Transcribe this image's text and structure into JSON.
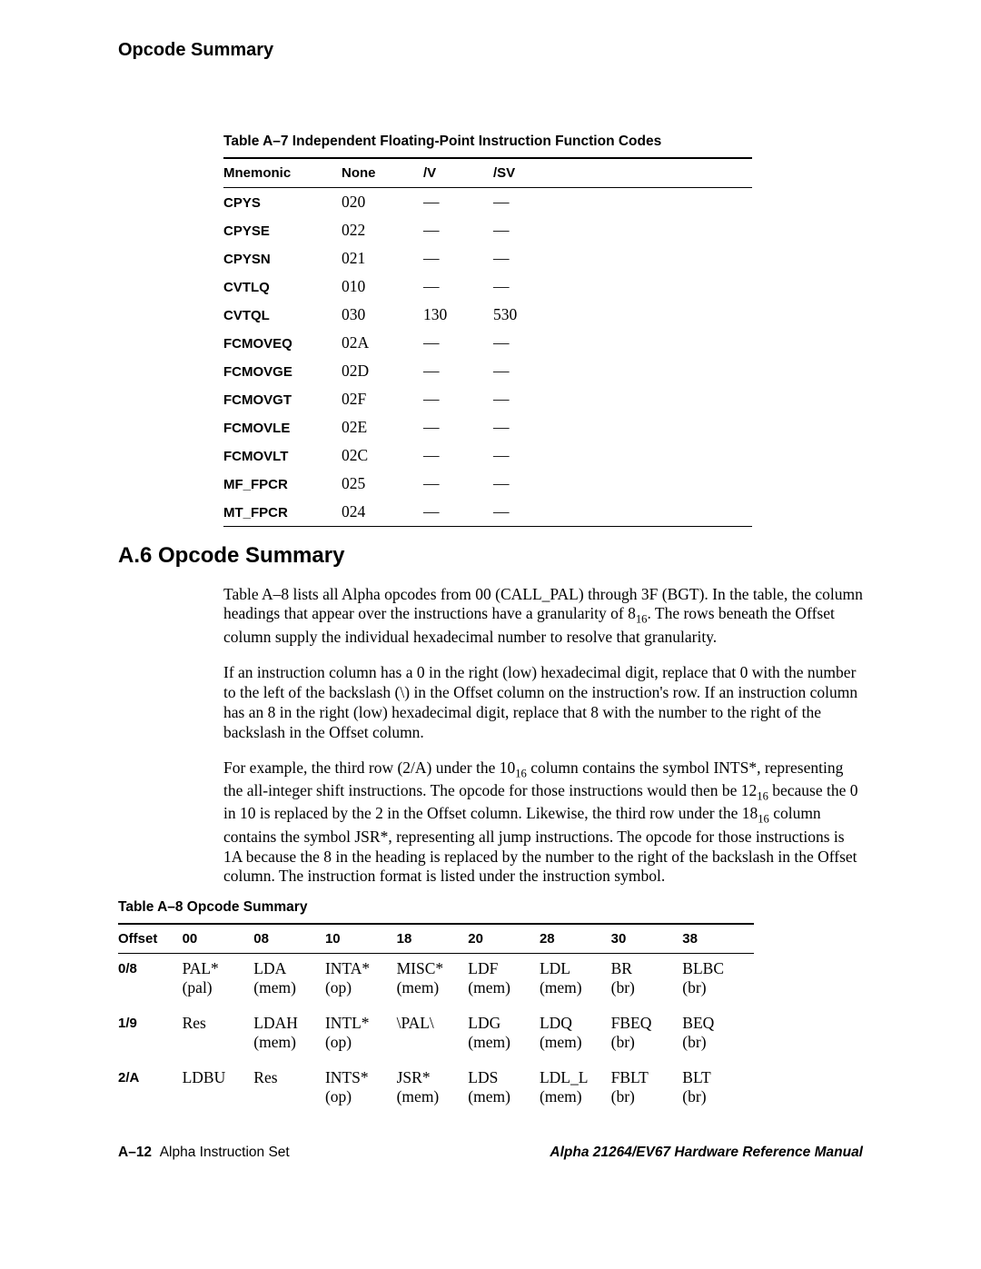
{
  "header": {
    "title": "Opcode Summary"
  },
  "tableA7": {
    "caption": "Table A–7  Independent Floating-Point Instruction Function Codes",
    "columns": [
      "Mnemonic",
      "None",
      "/V",
      "/SV"
    ],
    "rows": [
      [
        "CPYS",
        "020",
        "—",
        "—"
      ],
      [
        "CPYSE",
        "022",
        "—",
        "—"
      ],
      [
        "CPYSN",
        "021",
        "—",
        "—"
      ],
      [
        "CVTLQ",
        "010",
        "—",
        "—"
      ],
      [
        "CVTQL",
        "030",
        "130",
        "530"
      ],
      [
        "FCMOVEQ",
        "02A",
        "—",
        "—"
      ],
      [
        "FCMOVGE",
        "02D",
        "—",
        "—"
      ],
      [
        "FCMOVGT",
        "02F",
        "—",
        "—"
      ],
      [
        "FCMOVLE",
        "02E",
        "—",
        "—"
      ],
      [
        "FCMOVLT",
        "02C",
        "—",
        "—"
      ],
      [
        "MF_FPCR",
        "025",
        "—",
        "—"
      ],
      [
        "MT_FPCR",
        "024",
        "—",
        "—"
      ]
    ]
  },
  "section": {
    "heading": "A.6  Opcode Summary",
    "para1a": "Table A–8 lists all Alpha opcodes from 00 (CALL_PAL) through 3F (BGT). In the table, the column headings that appear over the instructions have a granularity of 8",
    "para1b": ". The rows beneath the Offset column supply the individual hexadecimal number to resolve that granularity.",
    "para2": "If an instruction column has a 0 in the right (low) hexadecimal digit, replace that 0 with the number to the left of the backslash (\\) in the Offset column on the instruction's row. If an instruction column has an 8 in the right (low) hexadecimal digit, replace that 8 with the number to the right of the backslash in the Offset column.",
    "para3a": "For example, the third row (2/A) under the 10",
    "para3b": " column contains the symbol INTS*, representing the all-integer shift instructions. The opcode for those instructions would then be 12",
    "para3c": " because the 0 in 10 is replaced by the 2 in the Offset column. Likewise, the third row under the 18",
    "para3d": " column contains the symbol JSR*, representing all jump instructions. The opcode for those instructions is 1A because the 8 in the heading is replaced by the number to the right of the backslash in the Offset column. The instruction format is listed under the instruction symbol.",
    "sub16": "16"
  },
  "tableA8": {
    "caption": "Table A–8  Opcode Summary",
    "columns": [
      "Offset",
      "00",
      "08",
      "10",
      "18",
      "20",
      "28",
      "30",
      "38"
    ],
    "rows": [
      {
        "offset": "0/8",
        "cells": [
          {
            "a": "PAL*",
            "b": "(pal)"
          },
          {
            "a": "LDA",
            "b": "(mem)"
          },
          {
            "a": "INTA*",
            "b": "(op)"
          },
          {
            "a": "MISC*",
            "b": "(mem)"
          },
          {
            "a": "LDF",
            "b": "(mem)"
          },
          {
            "a": "LDL",
            "b": "(mem)"
          },
          {
            "a": "BR",
            "b": "(br)"
          },
          {
            "a": "BLBC",
            "b": "(br)"
          }
        ]
      },
      {
        "offset": "1/9",
        "cells": [
          {
            "a": "Res",
            "b": ""
          },
          {
            "a": "LDAH",
            "b": "(mem)"
          },
          {
            "a": "INTL*",
            "b": "(op)"
          },
          {
            "a": "\\PAL\\",
            "b": ""
          },
          {
            "a": "LDG",
            "b": "(mem)"
          },
          {
            "a": "LDQ",
            "b": "(mem)"
          },
          {
            "a": "FBEQ",
            "b": "(br)"
          },
          {
            "a": "BEQ",
            "b": "(br)"
          }
        ]
      },
      {
        "offset": "2/A",
        "cells": [
          {
            "a": "LDBU",
            "b": ""
          },
          {
            "a": "Res",
            "b": ""
          },
          {
            "a": "INTS*",
            "b": "(op)"
          },
          {
            "a": "JSR*",
            "b": "(mem)"
          },
          {
            "a": "LDS",
            "b": "(mem)"
          },
          {
            "a": "LDL_L",
            "b": "(mem)"
          },
          {
            "a": "FBLT",
            "b": "(br)"
          },
          {
            "a": "BLT",
            "b": "(br)"
          }
        ]
      }
    ]
  },
  "footer": {
    "page": "A–12",
    "leftText": "Alpha Instruction Set",
    "right": "Alpha 21264/EV67 Hardware Reference Manual"
  }
}
